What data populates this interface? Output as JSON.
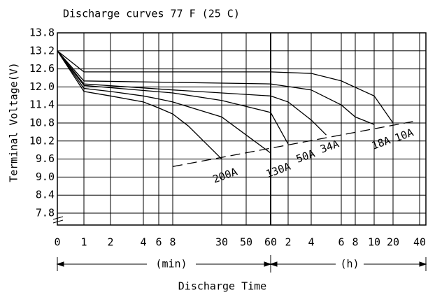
{
  "chart_data": {
    "type": "line",
    "title": "Discharge curves 77 F (25 C)",
    "y_label": "Terminal Voltage(V)",
    "x_label": "Discharge Time",
    "x_unit_labels": [
      "(min)",
      "(h)"
    ],
    "ylim": [
      7.8,
      13.8
    ],
    "yticks": [
      {
        "value": 13.8,
        "label": "13.8"
      },
      {
        "value": 13.2,
        "label": "13.2"
      },
      {
        "value": 12.6,
        "label": "12.6"
      },
      {
        "value": 12.0,
        "label": "12.0"
      },
      {
        "value": 11.4,
        "label": "11.4"
      },
      {
        "value": 10.8,
        "label": "10.8"
      },
      {
        "value": 10.2,
        "label": "10.2"
      },
      {
        "value": 9.6,
        "label": "9.6"
      },
      {
        "value": 9.0,
        "label": "9.0"
      },
      {
        "value": 8.4,
        "label": "8.4"
      },
      {
        "value": 7.8,
        "label": "7.8"
      }
    ],
    "xticks": [
      0,
      1,
      2,
      4,
      6,
      8,
      30,
      50,
      60,
      {
        "value": 120,
        "label": "2"
      },
      {
        "value": 240,
        "label": "4"
      },
      {
        "value": 360,
        "label": "6"
      },
      {
        "value": 480,
        "label": "8"
      },
      {
        "value": 600,
        "label": "10"
      },
      {
        "value": 1200,
        "label": "20"
      },
      {
        "value": 2400,
        "label": "40"
      }
    ],
    "grid": true,
    "color": "#000000",
    "series": [
      {
        "name": "200A",
        "x": [
          0,
          1,
          2,
          4,
          6,
          8,
          15,
          30
        ],
        "values": [
          13.2,
          11.85,
          11.7,
          11.5,
          11.3,
          11.1,
          10.7,
          9.6
        ]
      },
      {
        "name": "130A",
        "x": [
          0,
          1,
          2,
          4,
          6,
          8,
          30,
          50,
          60
        ],
        "values": [
          13.2,
          11.95,
          11.85,
          11.7,
          11.6,
          11.5,
          11.0,
          10.4,
          9.8
        ]
      },
      {
        "name": "50A",
        "x": [
          0,
          1,
          8,
          30,
          60,
          120
        ],
        "values": [
          13.2,
          12.05,
          11.8,
          11.55,
          11.15,
          10.1
        ]
      },
      {
        "name": "34A",
        "x": [
          0,
          1,
          8,
          60,
          120,
          240,
          300
        ],
        "values": [
          13.2,
          12.1,
          11.9,
          11.7,
          11.5,
          10.9,
          10.4
        ]
      },
      {
        "name": "18A",
        "x": [
          0,
          1,
          60,
          240,
          360,
          480,
          600
        ],
        "values": [
          13.2,
          12.2,
          12.1,
          11.9,
          11.4,
          11.0,
          10.75
        ]
      },
      {
        "name": "10A",
        "x": [
          0,
          1,
          60,
          240,
          360,
          600,
          1200
        ],
        "values": [
          13.2,
          12.5,
          12.5,
          12.45,
          12.2,
          11.7,
          10.8
        ]
      }
    ],
    "cutoff_line": {
      "x": [
        8,
        2100
      ],
      "values": [
        9.35,
        10.85
      ]
    }
  }
}
